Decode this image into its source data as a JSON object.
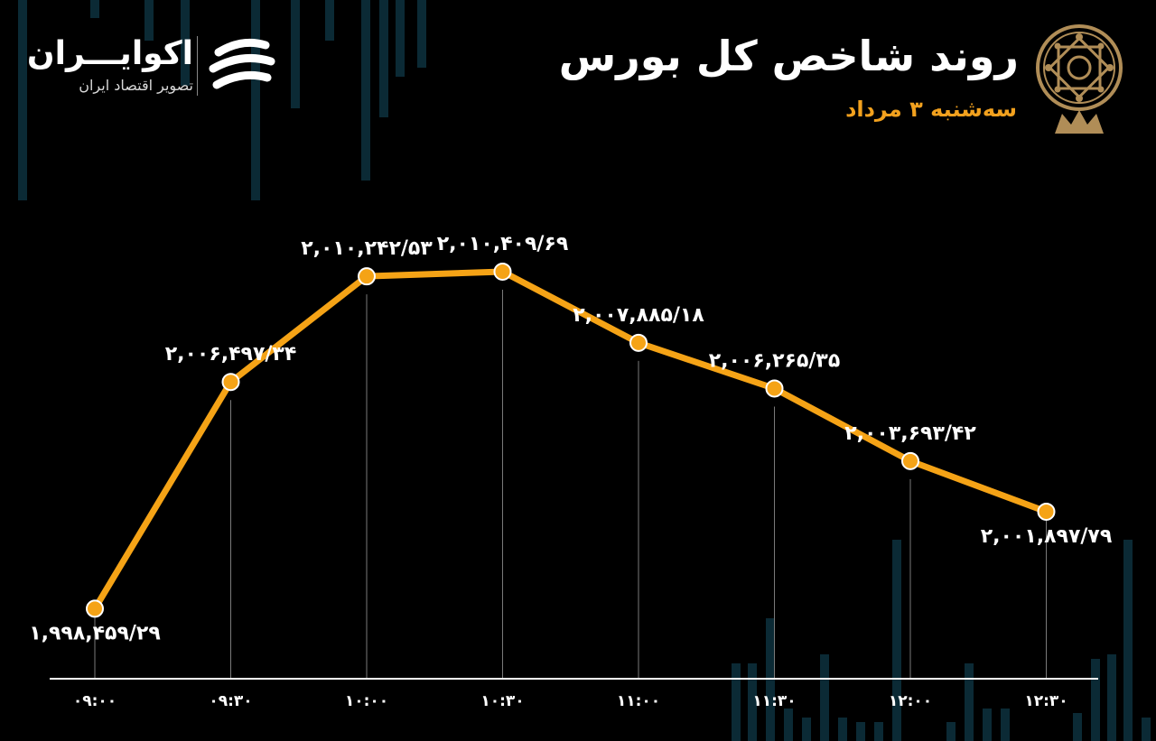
{
  "header": {
    "title": "روند شاخص کل بورس",
    "subtitle": "سه‌شنبه ۳ مرداد"
  },
  "brand": {
    "name": "اکوایـــران",
    "tagline": "تصویر اقتصاد ایران"
  },
  "colors": {
    "background": "#000000",
    "line": "#f5a316",
    "marker": "#f5a316",
    "label": "#ffffff",
    "subtitle": "#f2a11e",
    "emblem": "#b08d57",
    "background_bars": "#0b2a35"
  },
  "icons": {
    "brand_logo": "ecoiran-logo-icon",
    "emblem": "tehran-stock-exchange-emblem-icon"
  },
  "chart_data": {
    "type": "line",
    "title": "روند شاخص کل بورس",
    "subtitle": "سه‌شنبه ۳ مرداد",
    "xlabel": "",
    "ylabel": "",
    "x": [
      "۰۹:۰۰",
      "۰۹:۳۰",
      "۱۰:۰۰",
      "۱۰:۳۰",
      "۱۱:۰۰",
      "۱۱:۳۰",
      "۱۲:۰۰",
      "۱۲:۳۰"
    ],
    "values": [
      1998459.29,
      2006497.34,
      2010242.53,
      2010409.69,
      2007885.18,
      2006265.35,
      2003693.42,
      2001897.79
    ],
    "data_labels": [
      "۱,۹۹۸,۴۵۹/۲۹",
      "۲,۰۰۶,۴۹۷/۳۴",
      "۲,۰۱۰,۲۴۲/۵۳",
      "۲,۰۱۰,۴۰۹/۶۹",
      "۲,۰۰۷,۸۸۵/۱۸",
      "۲,۰۰۶,۲۶۵/۳۵",
      "۲,۰۰۳,۶۹۳/۴۲",
      "۲,۰۰۱,۸۹۷/۷۹"
    ],
    "label_side": [
      "below",
      "above",
      "above",
      "above",
      "above",
      "above",
      "above",
      "below"
    ],
    "ylim": [
      1997000,
      2013000
    ],
    "grid": false,
    "drop_lines": true,
    "legend": false
  }
}
